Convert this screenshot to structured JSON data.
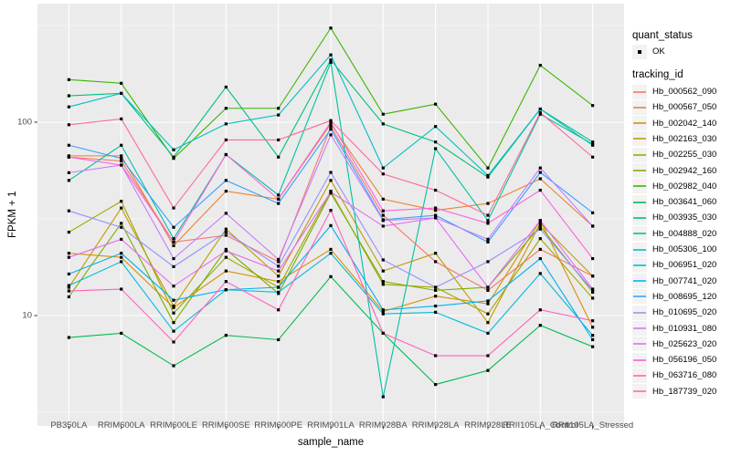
{
  "chart_data": {
    "type": "line",
    "title": "",
    "xlabel": "sample_name",
    "ylabel": "FPKM + 1",
    "y_scale": "log10",
    "ylim": [
      2.7,
      410
    ],
    "grid": {
      "major_y": [
        10,
        100
      ],
      "minor_y": [
        3.162,
        31.62,
        316.2
      ],
      "vertical_major": true
    },
    "legend_position": "right",
    "point_style": "small black square (quant_status OK)",
    "y_ticks": [
      {
        "value": 100,
        "label": "100"
      },
      {
        "value": 10,
        "label": "10"
      }
    ],
    "categories": [
      "PB350LA",
      "RRIM600LA",
      "RRIM600LE",
      "RRIM600SE",
      "RRIM600PE",
      "RRIM901LA",
      "RRIM928BA",
      "RRIM928LA",
      "RRIM928LE",
      "RRII105LA_Control",
      "RRII105LA_Stressed"
    ],
    "series": [
      {
        "name": "Hb_000562_090",
        "color": "#F8766D",
        "values": [
          66,
          63,
          24,
          26,
          19,
          95,
          33,
          19,
          13.5,
          22,
          16
        ]
      },
      {
        "name": "Hb_000567_050",
        "color": "#EA8331",
        "values": [
          67,
          67,
          23,
          44,
          40,
          98,
          40,
          35,
          38,
          51,
          29
        ]
      },
      {
        "name": "Hb_002042_140",
        "color": "#D89000",
        "values": [
          21,
          20,
          11,
          17,
          15,
          22,
          10.5,
          12.6,
          11.5,
          31,
          8.7
        ]
      },
      {
        "name": "Hb_002163_030",
        "color": "#C09B00",
        "values": [
          14,
          36,
          11.2,
          28,
          16,
          50,
          17,
          21,
          9.2,
          30,
          16
        ]
      },
      {
        "name": "Hb_002255_030",
        "color": "#A3A500",
        "values": [
          27,
          39,
          10.3,
          20,
          14,
          44,
          14.5,
          14,
          10.2,
          25,
          12.3
        ]
      },
      {
        "name": "Hb_002942_160",
        "color": "#7CAE00",
        "values": [
          12.5,
          30,
          9.2,
          22,
          13,
          43,
          15,
          13.5,
          14,
          29,
          13.2
        ]
      },
      {
        "name": "Hb_002982_040",
        "color": "#39B600",
        "values": [
          166,
          159,
          65,
          118,
          118,
          307,
          110,
          124,
          58,
          197,
          122
        ]
      },
      {
        "name": "Hb_003641_060",
        "color": "#00BB4E",
        "values": [
          7.7,
          8.1,
          5.5,
          7.9,
          7.5,
          15.9,
          8.1,
          4.4,
          5.2,
          8.9,
          6.9
        ]
      },
      {
        "name": "Hb_003935_030",
        "color": "#00BF7D",
        "values": [
          137,
          141,
          66,
          152,
          66,
          210,
          98,
          79,
          52,
          117,
          79
        ]
      },
      {
        "name": "Hb_004888_020",
        "color": "#00C1A3",
        "values": [
          50,
          76,
          25,
          68,
          42,
          204,
          3.8,
          73,
          31,
          110,
          77
        ]
      },
      {
        "name": "Hb_005306_100",
        "color": "#00BFC4",
        "values": [
          120,
          141,
          72,
          98,
          109,
          223,
          58,
          95,
          53,
          117,
          76
        ]
      },
      {
        "name": "Hb_006951_020",
        "color": "#00BBDA",
        "values": [
          14.3,
          19,
          8.3,
          13.6,
          13.2,
          21,
          10.2,
          10.4,
          8.1,
          16.5,
          7.9
        ]
      },
      {
        "name": "Hb_007741_020",
        "color": "#00B0F6",
        "values": [
          16.4,
          21,
          12,
          13.6,
          14,
          29.2,
          10.7,
          11.2,
          11.9,
          19.7,
          7.5
        ]
      },
      {
        "name": "Hb_008695_120",
        "color": "#35A2FF",
        "values": [
          76,
          65,
          28.6,
          50,
          38,
          92,
          31.3,
          33,
          24,
          55,
          34
        ]
      },
      {
        "name": "Hb_010695_020",
        "color": "#9590FF",
        "values": [
          34.8,
          28.6,
          17.9,
          27,
          18,
          55,
          19.4,
          14,
          19,
          28,
          13.5
        ]
      },
      {
        "name": "Hb_010931_080",
        "color": "#C77CFF",
        "values": [
          54.8,
          60,
          19.7,
          33.8,
          19.5,
          86,
          31,
          32,
          24.8,
          58,
          29
        ]
      },
      {
        "name": "Hb_025623_020",
        "color": "#E76BF3",
        "values": [
          20,
          24.8,
          14.2,
          21.6,
          17,
          43.5,
          29,
          32,
          14,
          31,
          13.7
        ]
      },
      {
        "name": "Hb_056196_050",
        "color": "#FA62DB",
        "values": [
          66,
          60,
          24,
          68,
          40,
          100,
          34.8,
          36,
          30,
          44.5,
          19.7
        ]
      },
      {
        "name": "Hb_063716_080",
        "color": "#FF62BC",
        "values": [
          13.4,
          13.7,
          7.3,
          15,
          10.7,
          35,
          8.1,
          6.2,
          6.2,
          10.7,
          9.4
        ]
      },
      {
        "name": "Hb_187739_020",
        "color": "#FF6A98",
        "values": [
          97,
          104,
          36,
          81,
          81,
          102,
          54,
          44.5,
          33,
          112,
          66
        ]
      }
    ]
  },
  "legend": {
    "quant_title": "quant_status",
    "quant_items": [
      {
        "label": "OK"
      }
    ],
    "tracking_title": "tracking_id"
  },
  "colors": {
    "panel_bg": "#EBEBEB",
    "grid": "#FFFFFF",
    "tick_text": "#4D4D4D",
    "tick_mark": "#333333",
    "point": "#000000",
    "legend_key_bg": "#F2F2F2"
  }
}
